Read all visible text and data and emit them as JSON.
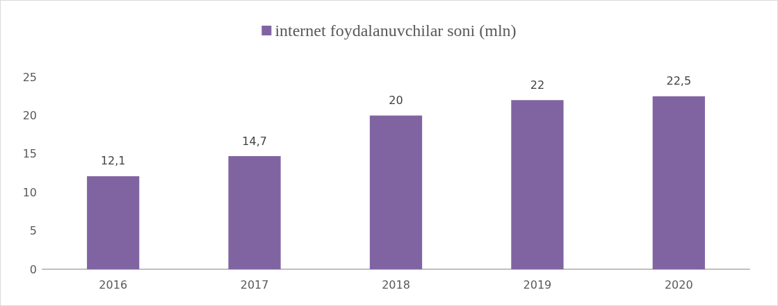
{
  "chart_data": {
    "type": "bar",
    "categories": [
      "2016",
      "2017",
      "2018",
      "2019",
      "2020"
    ],
    "series": [
      {
        "name": "internet foydalanuvchilar soni (mln)",
        "color": "#8064a2",
        "values": [
          12.1,
          14.7,
          20,
          22,
          22.5
        ],
        "value_labels": [
          "12,1",
          "14,7",
          "20",
          "22",
          "22,5"
        ]
      }
    ],
    "ylim": [
      0,
      25
    ],
    "yticks": [
      0,
      5,
      10,
      15,
      20,
      25
    ],
    "grid": false,
    "legend": "top"
  }
}
